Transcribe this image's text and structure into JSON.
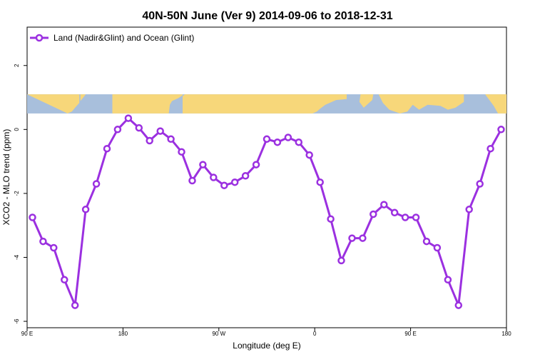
{
  "chart_data": {
    "type": "line",
    "title": "40N-50N June (Ver 9)   2014-09-06 to 2018-12-31",
    "xlabel": "Longitude (deg E)",
    "ylabel": "XCO2 - MLO trend (ppm)",
    "xlim": [
      90,
      540
    ],
    "ylim": [
      -6.2,
      3.2
    ],
    "x_ticks": [
      {
        "value": 90,
        "label": "90 E"
      },
      {
        "value": 180,
        "label": "180"
      },
      {
        "value": 270,
        "label": "90 W"
      },
      {
        "value": 360,
        "label": "0"
      },
      {
        "value": 450,
        "label": "90 E"
      },
      {
        "value": 540,
        "label": "180"
      }
    ],
    "y_ticks": [
      {
        "value": 2,
        "label": "2"
      },
      {
        "value": 0,
        "label": "0"
      },
      {
        "value": -2,
        "label": "-2"
      },
      {
        "value": -4,
        "label": "-4"
      },
      {
        "value": -6,
        "label": "-6"
      }
    ],
    "legend": {
      "position": "top-left"
    },
    "series": [
      {
        "name": "Land (Nadir&Glint) and Ocean (Glint)",
        "color": "#9b30e0",
        "x": [
          95,
          105,
          115,
          125,
          135,
          145,
          155,
          165,
          175,
          185,
          195,
          205,
          215,
          225,
          235,
          245,
          255,
          265,
          275,
          285,
          295,
          305,
          315,
          325,
          335,
          345,
          355,
          365,
          375,
          385,
          395,
          405,
          415,
          425,
          435,
          445,
          455,
          465,
          475,
          485,
          495,
          505,
          515,
          525,
          535
        ],
        "y": [
          -2.75,
          -3.5,
          -3.7,
          -4.7,
          -5.5,
          -2.5,
          -1.7,
          -0.6,
          0.0,
          0.35,
          0.05,
          -0.35,
          -0.05,
          -0.3,
          -0.7,
          -1.6,
          -1.1,
          -1.5,
          -1.75,
          -1.65,
          -1.45,
          -1.1,
          -0.3,
          -0.4,
          -0.25,
          -0.4,
          -0.8,
          -1.65,
          -2.8,
          -4.1,
          -3.4,
          -3.4,
          -2.65,
          -2.35,
          -2.6,
          -2.75,
          -2.75,
          -3.5,
          -3.7,
          -4.7,
          -5.5,
          -2.5,
          -1.7,
          -0.6,
          0.0
        ]
      }
    ],
    "map_strip": {
      "y_range": [
        0.5,
        1.1
      ],
      "land_color": "#f7d77a",
      "ocean_color": "#a8bfdc"
    }
  }
}
